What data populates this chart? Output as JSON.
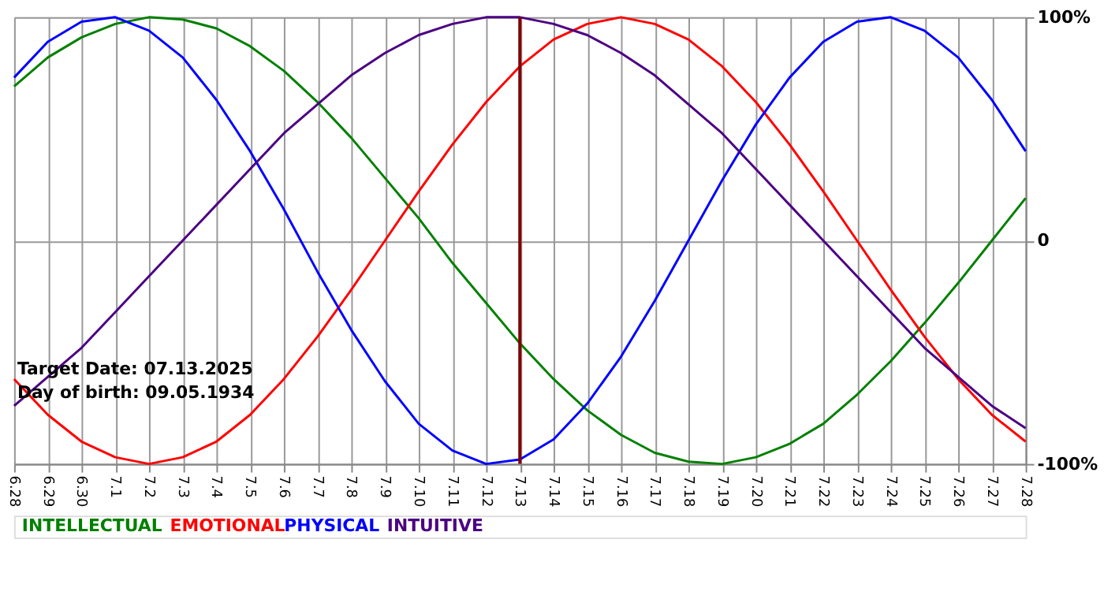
{
  "chart_data": {
    "type": "line",
    "categories": [
      "6.28",
      "6.29",
      "6.30",
      "7.1",
      "7.2",
      "7.3",
      "7.4",
      "7.5",
      "7.6",
      "7.7",
      "7.8",
      "7.9",
      "7.10",
      "7.11",
      "7.12",
      "7.13",
      "7.14",
      "7.15",
      "7.16",
      "7.17",
      "7.18",
      "7.19",
      "7.20",
      "7.21",
      "7.22",
      "7.23",
      "7.24",
      "7.25",
      "7.26",
      "7.27",
      "7.28"
    ],
    "series": [
      {
        "name": "INTELLECTUAL",
        "color": "#008000",
        "values": [
          69,
          82,
          91,
          97,
          100,
          99,
          95,
          87,
          76,
          62,
          46,
          28,
          10,
          -10,
          -28,
          -46,
          -62,
          -76,
          -87,
          -95,
          -99,
          -100,
          -97,
          -91,
          -82,
          -69,
          -54,
          -37,
          -19,
          0,
          19
        ]
      },
      {
        "name": "EMOTIONAL",
        "color": "#ff0000",
        "values": [
          -62,
          -78,
          -90,
          -97,
          -100,
          -97,
          -90,
          -78,
          -62,
          -43,
          -22,
          0,
          22,
          43,
          62,
          78,
          90,
          97,
          100,
          97,
          90,
          78,
          62,
          43,
          22,
          0,
          -22,
          -43,
          -62,
          -78,
          -90
        ]
      },
      {
        "name": "PHYSICAL",
        "color": "#0000ff",
        "values": [
          73,
          89,
          98,
          100,
          94,
          82,
          63,
          40,
          14,
          -14,
          -40,
          -63,
          -82,
          -94,
          -100,
          -98,
          -89,
          -73,
          -52,
          -27,
          0,
          27,
          52,
          73,
          89,
          98,
          100,
          94,
          82,
          63,
          40
        ]
      },
      {
        "name": "INTUITIVE",
        "color": "#4b0082",
        "values": [
          -74,
          -61,
          -48,
          -32,
          -16,
          0,
          16,
          32,
          48,
          61,
          74,
          84,
          92,
          97,
          100,
          100,
          97,
          92,
          84,
          74,
          61,
          48,
          32,
          16,
          0,
          -16,
          -32,
          -48,
          -61,
          -74,
          -84
        ]
      }
    ],
    "ylim": [
      -100,
      100
    ],
    "yticks": [
      {
        "value": -100,
        "label": "-100%"
      },
      0,
      {
        "value": 100,
        "label": "100%"
      }
    ],
    "ref_lines": [
      {
        "axis": "x",
        "value": "7.13",
        "color": "#800000"
      }
    ],
    "annotations": [
      "Target Date: 07.13.2025",
      "Day of birth: 09.05.1934"
    ],
    "grid": true,
    "legend": "bottom"
  }
}
